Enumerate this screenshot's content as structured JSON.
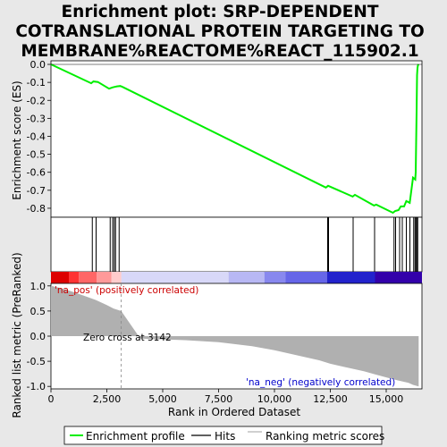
{
  "chart_data": {
    "type": "line",
    "title_lines": [
      "Enrichment plot: SRP-DEPENDENT",
      "COTRANSLATIONAL PROTEIN TARGETING TO",
      "MEMBRANE%REACTOME%REACT_115902.1"
    ],
    "xlabel": "Rank in Ordered Dataset",
    "es_ylabel": "Enrichment score (ES)",
    "metric_ylabel": "Ranked list metric (PreRanked)",
    "xlim": [
      0,
      16600
    ],
    "x_ticks": [
      0,
      2500,
      5000,
      7500,
      10000,
      12500,
      15000
    ],
    "x_tick_labels": [
      "0",
      "2,500",
      "5,000",
      "7,500",
      "10,000",
      "12,500",
      "15,000"
    ],
    "es_ylim": [
      -0.85,
      0.02
    ],
    "es_ticks": [
      0.0,
      -0.1,
      -0.2,
      -0.3,
      -0.4,
      -0.5,
      -0.6,
      -0.7,
      -0.8
    ],
    "es_tick_labels": [
      "0.0",
      "-0.1",
      "-0.2",
      "-0.3",
      "-0.4",
      "-0.5",
      "-0.6",
      "-0.7",
      "-0.8"
    ],
    "metric_ylim": [
      -1.05,
      1.05
    ],
    "metric_ticks": [
      1.0,
      0.5,
      0.0,
      -0.5,
      -1.0
    ],
    "metric_tick_labels": [
      "1.0",
      "0.5",
      "0.0",
      "-0.5",
      "-1.0"
    ],
    "enrichment_profile": {
      "name": "Enrichment profile",
      "color": "#00ee00",
      "x": [
        0,
        1800,
        1900,
        2100,
        2600,
        2750,
        2850,
        2950,
        3100,
        3200,
        12300,
        12400,
        13500,
        13600,
        14450,
        14550,
        15300,
        15400,
        15550,
        15650,
        15800,
        15900,
        16050,
        16200,
        16300,
        16320,
        16340,
        16360,
        16380,
        16400,
        16420,
        16450
      ],
      "y": [
        0.0,
        -0.105,
        -0.095,
        -0.098,
        -0.135,
        -0.128,
        -0.125,
        -0.122,
        -0.12,
        -0.125,
        -0.685,
        -0.675,
        -0.735,
        -0.725,
        -0.785,
        -0.78,
        -0.825,
        -0.815,
        -0.81,
        -0.79,
        -0.79,
        -0.76,
        -0.77,
        -0.63,
        -0.64,
        -0.6,
        -0.43,
        -0.26,
        -0.06,
        -0.02,
        -0.005,
        0.0
      ]
    },
    "hits": {
      "name": "Hits",
      "color": "#000000",
      "x": [
        1850,
        2020,
        2650,
        2760,
        2830,
        2890,
        3050,
        12380,
        12420,
        13520,
        14480,
        15350,
        15420,
        15600,
        15720,
        15900,
        16060,
        16230,
        16290,
        16330,
        16370,
        16410
      ]
    },
    "ranking_metric": {
      "name": "Ranking metric scores",
      "color": "#b0b0b0",
      "x": [
        0,
        500,
        1000,
        1500,
        2000,
        2500,
        2800,
        3142,
        4000,
        6000,
        7500,
        9000,
        10000,
        11000,
        12000,
        12500,
        13000,
        13500,
        14000,
        14500,
        15000,
        15500,
        16000,
        16200,
        16450
      ],
      "y": [
        1.0,
        0.95,
        0.88,
        0.8,
        0.72,
        0.62,
        0.55,
        0.5,
        -0.05,
        -0.08,
        -0.12,
        -0.2,
        -0.28,
        -0.38,
        -0.48,
        -0.55,
        -0.6,
        -0.65,
        -0.7,
        -0.76,
        -0.82,
        -0.88,
        -0.93,
        -0.97,
        -1.0
      ]
    },
    "zero_cross": 3142,
    "annotations": {
      "pos": "'na_pos' (positively correlated)",
      "neg": "'na_neg' (negatively correlated)",
      "zero": "Zero cross at 3142"
    },
    "heat_band": [
      {
        "x0": 0,
        "x1": 800,
        "color": "#dd0000"
      },
      {
        "x0": 800,
        "x1": 1250,
        "color": "#ff3333"
      },
      {
        "x0": 1250,
        "x1": 2050,
        "color": "#ff6666"
      },
      {
        "x0": 2050,
        "x1": 2700,
        "color": "#ff9999"
      },
      {
        "x0": 2700,
        "x1": 3150,
        "color": "#ffcccc"
      },
      {
        "x0": 3150,
        "x1": 7950,
        "color": "#d8d8f8"
      },
      {
        "x0": 7950,
        "x1": 9550,
        "color": "#b8b8f4"
      },
      {
        "x0": 9550,
        "x1": 10500,
        "color": "#8888ee"
      },
      {
        "x0": 10500,
        "x1": 12350,
        "color": "#6666e8"
      },
      {
        "x0": 12350,
        "x1": 14500,
        "color": "#2222cc"
      },
      {
        "x0": 14500,
        "x1": 16600,
        "color": "#3300aa"
      }
    ],
    "legend": [
      "Enrichment profile",
      "Hits",
      "Ranking metric scores"
    ]
  }
}
